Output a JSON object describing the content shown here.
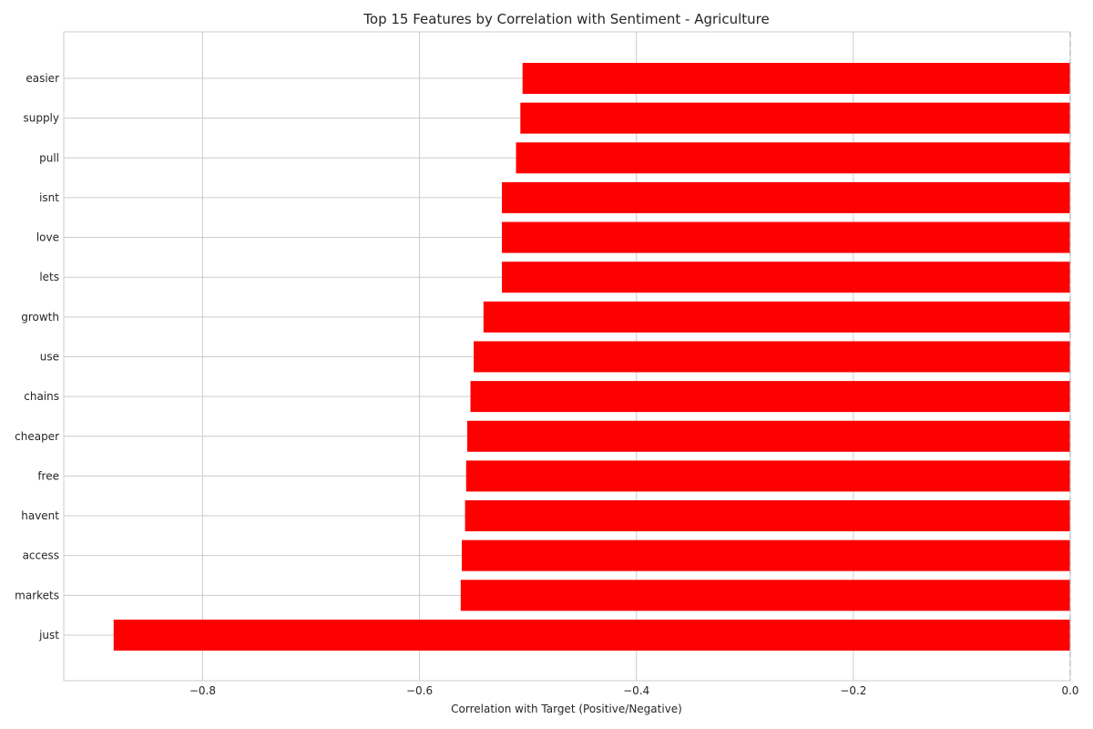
{
  "chart_data": {
    "type": "bar",
    "orientation": "horizontal",
    "title": "Top 15 Features by Correlation with Sentiment - Agriculture",
    "xlabel": "Correlation with Target (Positive/Negative)",
    "ylabel": "",
    "categories": [
      "easier",
      "supply",
      "pull",
      "isnt",
      "love",
      "lets",
      "growth",
      "use",
      "chains",
      "cheaper",
      "free",
      "havent",
      "access",
      "markets",
      "just"
    ],
    "values": [
      -0.505,
      -0.507,
      -0.511,
      -0.524,
      -0.524,
      -0.524,
      -0.541,
      -0.55,
      -0.553,
      -0.556,
      -0.557,
      -0.558,
      -0.561,
      -0.562,
      -0.882
    ],
    "xlim": [
      -0.928,
      0.0
    ],
    "xticks": [
      -0.8,
      -0.6,
      -0.4,
      -0.2,
      0.0
    ],
    "xtick_labels": [
      "−0.8",
      "−0.6",
      "−0.4",
      "−0.2",
      "0.0"
    ],
    "reference_line": {
      "x": 0.0,
      "style": "dashed"
    },
    "bar_color": "#ff0000",
    "grid": true,
    "legend": "none"
  }
}
